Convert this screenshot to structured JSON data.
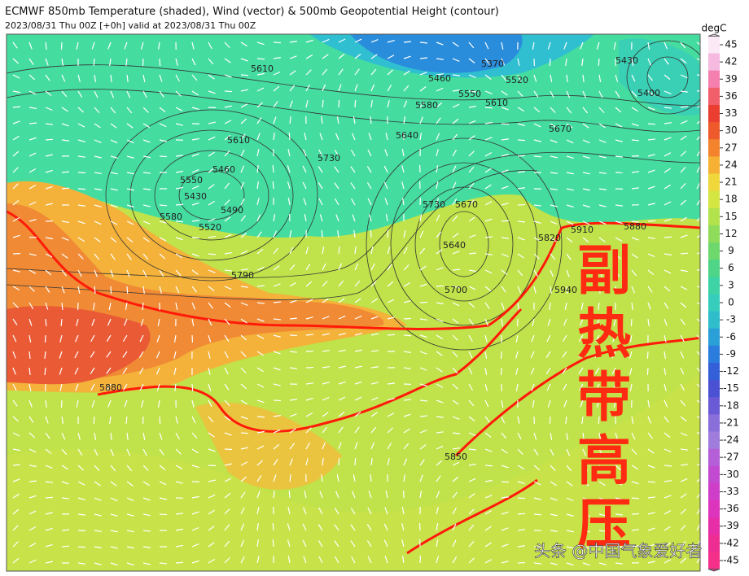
{
  "header": {
    "title": "ECMWF 850mb Temperature (shaded), Wind (vector) & 500mb Geopotential Height (contour)",
    "subtitle": "2023/08/31 Thu 00Z [+0h] valid at 2023/08/31 Thu 00Z"
  },
  "colorbar": {
    "unit": "degC",
    "ticks": [
      45,
      42,
      39,
      36,
      33,
      30,
      27,
      24,
      21,
      18,
      15,
      12,
      9,
      6,
      3,
      0,
      -3,
      -6,
      -9,
      -12,
      -15,
      -18,
      -21,
      -24,
      -27,
      -30,
      -33,
      -36,
      -39,
      -42,
      -45
    ],
    "colors": [
      "#fbe9f6",
      "#f6b9e0",
      "#f57fae",
      "#f1606a",
      "#ea3f30",
      "#ef5a2c",
      "#f3842d",
      "#f6b135",
      "#f0d83c",
      "#d5e643",
      "#b2e24c",
      "#8fdc5a",
      "#6fd86c",
      "#4fd587",
      "#3ed3a4",
      "#36cdbd",
      "#2fbdcc",
      "#2a9fd8",
      "#2a7ddc",
      "#3360d8",
      "#4a51d3",
      "#6a5ad6",
      "#8a6fdb",
      "#a07cdc",
      "#b45fd8",
      "#c24ad0",
      "#cf3ec8",
      "#dd34bd",
      "#e52ea8",
      "#ee2d93",
      "#f4308a"
    ]
  },
  "map": {
    "contour_labels": [
      "5610",
      "5460",
      "5370",
      "5520",
      "5550",
      "5580",
      "5610",
      "5430",
      "5400",
      "5670",
      "5640",
      "5730",
      "5610",
      "5460",
      "5550",
      "5430",
      "5490",
      "5580",
      "5520",
      "5730",
      "5670",
      "5640",
      "5820",
      "5910",
      "5880",
      "5940",
      "5700",
      "5790",
      "5880",
      "5850"
    ],
    "annotation": [
      "副",
      "热",
      "带",
      "高",
      "压"
    ],
    "watermark": "头条 @中国气象爱好者"
  }
}
